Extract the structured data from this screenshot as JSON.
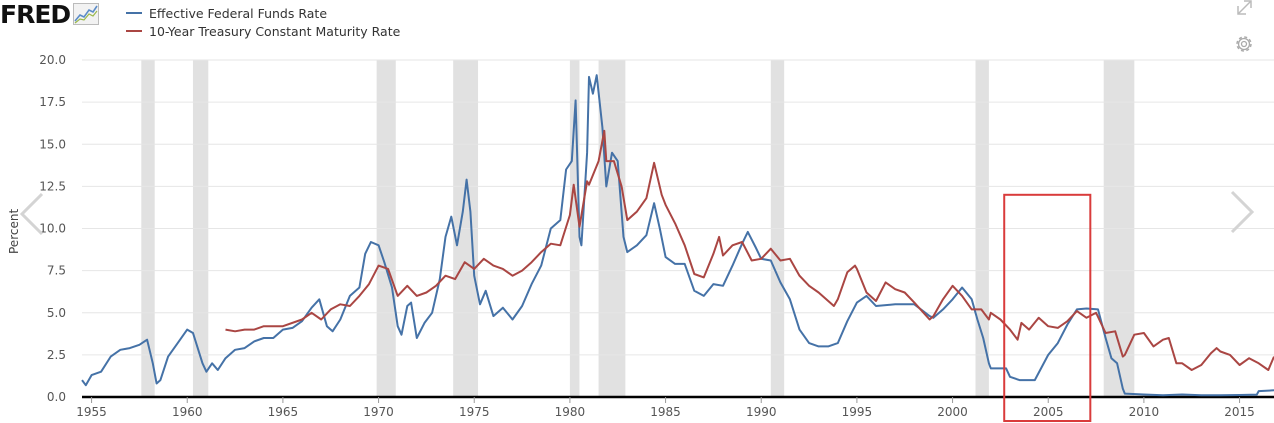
{
  "logo": {
    "text": "FRED",
    "icon": "line-chart-icon"
  },
  "tools": {
    "expand_icon": "expand-icon",
    "settings_icon": "gear-icon"
  },
  "navigation": {
    "prev_icon": "chevron-left-icon",
    "next_icon": "chevron-right-icon"
  },
  "colors": {
    "fedfunds": "#4572a7",
    "treasury": "#aa4643",
    "recession": "#e1e1e1",
    "highlight": "#d93b3b",
    "grid": "#e6e6e6"
  },
  "chart_data": {
    "type": "line",
    "title": "",
    "xlabel": "",
    "ylabel": "Percent",
    "xlim": [
      1954.5,
      2016.8
    ],
    "ylim": [
      0,
      20
    ],
    "y_ticks": [
      "0.0",
      "2.5",
      "5.0",
      "7.5",
      "10.0",
      "12.5",
      "15.0",
      "17.5",
      "20.0"
    ],
    "x_ticks": [
      "1955",
      "1960",
      "1965",
      "1970",
      "1975",
      "1980",
      "1985",
      "1990",
      "1995",
      "2000",
      "2005",
      "2010",
      "2015"
    ],
    "grid": true,
    "legend": "top-left",
    "recessions": [
      [
        1957.6,
        1958.3
      ],
      [
        1960.3,
        1961.1
      ],
      [
        1969.9,
        1970.9
      ],
      [
        1973.9,
        1975.2
      ],
      [
        1980.0,
        1980.5
      ],
      [
        1981.5,
        1982.9
      ],
      [
        1990.5,
        1991.2
      ],
      [
        2001.2,
        2001.9
      ],
      [
        2007.9,
        2009.5
      ]
    ],
    "highlight_box": {
      "x": [
        2002.7,
        2007.2
      ],
      "y": [
        -1.5,
        12
      ]
    },
    "series": [
      {
        "name": "Effective Federal Funds Rate",
        "color": "#4572a7",
        "points": [
          [
            1954.5,
            1.0
          ],
          [
            1954.7,
            0.7
          ],
          [
            1955.0,
            1.3
          ],
          [
            1955.5,
            1.5
          ],
          [
            1956.0,
            2.4
          ],
          [
            1956.5,
            2.8
          ],
          [
            1957.0,
            2.9
          ],
          [
            1957.5,
            3.1
          ],
          [
            1957.9,
            3.4
          ],
          [
            1958.2,
            2.0
          ],
          [
            1958.4,
            0.8
          ],
          [
            1958.6,
            1.0
          ],
          [
            1959.0,
            2.4
          ],
          [
            1959.5,
            3.2
          ],
          [
            1960.0,
            4.0
          ],
          [
            1960.3,
            3.8
          ],
          [
            1960.8,
            2.0
          ],
          [
            1961.0,
            1.5
          ],
          [
            1961.3,
            2.0
          ],
          [
            1961.6,
            1.6
          ],
          [
            1962.0,
            2.3
          ],
          [
            1962.5,
            2.8
          ],
          [
            1963.0,
            2.9
          ],
          [
            1963.5,
            3.3
          ],
          [
            1964.0,
            3.5
          ],
          [
            1964.5,
            3.5
          ],
          [
            1965.0,
            4.0
          ],
          [
            1965.5,
            4.1
          ],
          [
            1966.0,
            4.5
          ],
          [
            1966.5,
            5.3
          ],
          [
            1966.9,
            5.8
          ],
          [
            1967.3,
            4.2
          ],
          [
            1967.6,
            3.9
          ],
          [
            1968.0,
            4.6
          ],
          [
            1968.5,
            6.0
          ],
          [
            1969.0,
            6.5
          ],
          [
            1969.3,
            8.5
          ],
          [
            1969.6,
            9.2
          ],
          [
            1970.0,
            9.0
          ],
          [
            1970.3,
            8.0
          ],
          [
            1970.7,
            6.5
          ],
          [
            1971.0,
            4.2
          ],
          [
            1971.2,
            3.7
          ],
          [
            1971.5,
            5.4
          ],
          [
            1971.7,
            5.6
          ],
          [
            1972.0,
            3.5
          ],
          [
            1972.4,
            4.4
          ],
          [
            1972.8,
            5.0
          ],
          [
            1973.2,
            7.0
          ],
          [
            1973.5,
            9.5
          ],
          [
            1973.8,
            10.7
          ],
          [
            1974.1,
            9.0
          ],
          [
            1974.4,
            11.0
          ],
          [
            1974.6,
            12.9
          ],
          [
            1974.8,
            11.0
          ],
          [
            1975.0,
            7.2
          ],
          [
            1975.3,
            5.5
          ],
          [
            1975.6,
            6.3
          ],
          [
            1976.0,
            4.8
          ],
          [
            1976.5,
            5.3
          ],
          [
            1977.0,
            4.6
          ],
          [
            1977.5,
            5.4
          ],
          [
            1978.0,
            6.7
          ],
          [
            1978.5,
            7.8
          ],
          [
            1979.0,
            10.0
          ],
          [
            1979.5,
            10.5
          ],
          [
            1979.8,
            13.5
          ],
          [
            1980.1,
            14.0
          ],
          [
            1980.3,
            17.6
          ],
          [
            1980.5,
            9.5
          ],
          [
            1980.6,
            9.0
          ],
          [
            1980.9,
            14.5
          ],
          [
            1981.0,
            19.0
          ],
          [
            1981.2,
            18.0
          ],
          [
            1981.4,
            19.1
          ],
          [
            1981.7,
            16.0
          ],
          [
            1981.9,
            12.5
          ],
          [
            1982.2,
            14.5
          ],
          [
            1982.5,
            14.0
          ],
          [
            1982.8,
            9.5
          ],
          [
            1983.0,
            8.6
          ],
          [
            1983.5,
            9.0
          ],
          [
            1984.0,
            9.6
          ],
          [
            1984.4,
            11.5
          ],
          [
            1984.7,
            10.0
          ],
          [
            1985.0,
            8.3
          ],
          [
            1985.5,
            7.9
          ],
          [
            1986.0,
            7.9
          ],
          [
            1986.5,
            6.3
          ],
          [
            1987.0,
            6.0
          ],
          [
            1987.5,
            6.7
          ],
          [
            1988.0,
            6.6
          ],
          [
            1988.5,
            7.8
          ],
          [
            1989.0,
            9.1
          ],
          [
            1989.3,
            9.8
          ],
          [
            1989.7,
            8.9
          ],
          [
            1990.0,
            8.2
          ],
          [
            1990.5,
            8.1
          ],
          [
            1991.0,
            6.8
          ],
          [
            1991.5,
            5.8
          ],
          [
            1992.0,
            4.0
          ],
          [
            1992.5,
            3.2
          ],
          [
            1993.0,
            3.0
          ],
          [
            1993.5,
            3.0
          ],
          [
            1994.0,
            3.2
          ],
          [
            1994.5,
            4.5
          ],
          [
            1995.0,
            5.6
          ],
          [
            1995.5,
            6.0
          ],
          [
            1996.0,
            5.4
          ],
          [
            1997.0,
            5.5
          ],
          [
            1998.0,
            5.5
          ],
          [
            1998.8,
            4.8
          ],
          [
            1999.0,
            4.7
          ],
          [
            1999.5,
            5.2
          ],
          [
            2000.0,
            5.8
          ],
          [
            2000.5,
            6.5
          ],
          [
            2001.0,
            5.8
          ],
          [
            2001.3,
            4.6
          ],
          [
            2001.6,
            3.5
          ],
          [
            2001.9,
            2.0
          ],
          [
            2002.0,
            1.7
          ],
          [
            2002.8,
            1.7
          ],
          [
            2003.0,
            1.2
          ],
          [
            2003.5,
            1.0
          ],
          [
            2004.0,
            1.0
          ],
          [
            2004.3,
            1.0
          ],
          [
            2005.0,
            2.5
          ],
          [
            2005.5,
            3.2
          ],
          [
            2006.0,
            4.3
          ],
          [
            2006.5,
            5.2
          ],
          [
            2007.0,
            5.25
          ],
          [
            2007.6,
            5.2
          ],
          [
            2008.0,
            3.5
          ],
          [
            2008.3,
            2.3
          ],
          [
            2008.6,
            2.0
          ],
          [
            2008.9,
            0.5
          ],
          [
            2009.0,
            0.2
          ],
          [
            2010.0,
            0.15
          ],
          [
            2011.0,
            0.1
          ],
          [
            2012.0,
            0.15
          ],
          [
            2013.0,
            0.1
          ],
          [
            2014.0,
            0.1
          ],
          [
            2015.0,
            0.12
          ],
          [
            2015.9,
            0.14
          ],
          [
            2016.0,
            0.35
          ],
          [
            2016.8,
            0.4
          ]
        ]
      },
      {
        "name": "10-Year Treasury Constant Maturity Rate",
        "color": "#aa4643",
        "points": [
          [
            1962.0,
            4.0
          ],
          [
            1962.5,
            3.9
          ],
          [
            1963.0,
            4.0
          ],
          [
            1963.5,
            4.0
          ],
          [
            1964.0,
            4.2
          ],
          [
            1965.0,
            4.2
          ],
          [
            1966.0,
            4.6
          ],
          [
            1966.5,
            5.0
          ],
          [
            1967.0,
            4.6
          ],
          [
            1967.5,
            5.2
          ],
          [
            1968.0,
            5.5
          ],
          [
            1968.5,
            5.4
          ],
          [
            1969.0,
            6.0
          ],
          [
            1969.5,
            6.7
          ],
          [
            1970.0,
            7.8
          ],
          [
            1970.5,
            7.6
          ],
          [
            1971.0,
            6.0
          ],
          [
            1971.5,
            6.6
          ],
          [
            1972.0,
            6.0
          ],
          [
            1972.5,
            6.2
          ],
          [
            1973.0,
            6.6
          ],
          [
            1973.5,
            7.2
          ],
          [
            1974.0,
            7.0
          ],
          [
            1974.5,
            8.0
          ],
          [
            1975.0,
            7.6
          ],
          [
            1975.5,
            8.2
          ],
          [
            1976.0,
            7.8
          ],
          [
            1976.5,
            7.6
          ],
          [
            1977.0,
            7.2
          ],
          [
            1977.5,
            7.5
          ],
          [
            1978.0,
            8.0
          ],
          [
            1978.5,
            8.6
          ],
          [
            1979.0,
            9.1
          ],
          [
            1979.5,
            9.0
          ],
          [
            1980.0,
            10.8
          ],
          [
            1980.2,
            12.6
          ],
          [
            1980.5,
            10.1
          ],
          [
            1980.9,
            12.8
          ],
          [
            1981.0,
            12.6
          ],
          [
            1981.5,
            14.0
          ],
          [
            1981.8,
            15.8
          ],
          [
            1981.9,
            14.0
          ],
          [
            1982.3,
            14.0
          ],
          [
            1982.7,
            12.5
          ],
          [
            1983.0,
            10.5
          ],
          [
            1983.5,
            11.0
          ],
          [
            1984.0,
            11.8
          ],
          [
            1984.4,
            13.9
          ],
          [
            1984.8,
            12.0
          ],
          [
            1985.0,
            11.4
          ],
          [
            1985.5,
            10.3
          ],
          [
            1986.0,
            9.0
          ],
          [
            1986.5,
            7.3
          ],
          [
            1987.0,
            7.1
          ],
          [
            1987.5,
            8.5
          ],
          [
            1987.8,
            9.5
          ],
          [
            1988.0,
            8.4
          ],
          [
            1988.5,
            9.0
          ],
          [
            1989.0,
            9.2
          ],
          [
            1989.5,
            8.1
          ],
          [
            1990.0,
            8.2
          ],
          [
            1990.5,
            8.8
          ],
          [
            1991.0,
            8.1
          ],
          [
            1991.5,
            8.2
          ],
          [
            1992.0,
            7.2
          ],
          [
            1992.5,
            6.6
          ],
          [
            1993.0,
            6.2
          ],
          [
            1993.8,
            5.4
          ],
          [
            1994.0,
            5.8
          ],
          [
            1994.5,
            7.4
          ],
          [
            1994.9,
            7.8
          ],
          [
            1995.0,
            7.6
          ],
          [
            1995.5,
            6.2
          ],
          [
            1996.0,
            5.7
          ],
          [
            1996.5,
            6.8
          ],
          [
            1997.0,
            6.4
          ],
          [
            1997.5,
            6.2
          ],
          [
            1998.0,
            5.6
          ],
          [
            1998.8,
            4.6
          ],
          [
            1999.0,
            4.8
          ],
          [
            1999.5,
            5.8
          ],
          [
            2000.0,
            6.6
          ],
          [
            2000.5,
            6.0
          ],
          [
            2001.0,
            5.2
          ],
          [
            2001.5,
            5.2
          ],
          [
            2001.9,
            4.6
          ],
          [
            2002.0,
            5.0
          ],
          [
            2002.5,
            4.6
          ],
          [
            2003.0,
            4.0
          ],
          [
            2003.4,
            3.4
          ],
          [
            2003.6,
            4.4
          ],
          [
            2004.0,
            4.0
          ],
          [
            2004.5,
            4.7
          ],
          [
            2005.0,
            4.2
          ],
          [
            2005.5,
            4.1
          ],
          [
            2006.0,
            4.5
          ],
          [
            2006.5,
            5.1
          ],
          [
            2007.0,
            4.7
          ],
          [
            2007.5,
            5.0
          ],
          [
            2008.0,
            3.8
          ],
          [
            2008.5,
            3.9
          ],
          [
            2008.9,
            2.4
          ],
          [
            2009.0,
            2.5
          ],
          [
            2009.5,
            3.7
          ],
          [
            2010.0,
            3.8
          ],
          [
            2010.5,
            3.0
          ],
          [
            2011.0,
            3.4
          ],
          [
            2011.3,
            3.5
          ],
          [
            2011.7,
            2.0
          ],
          [
            2012.0,
            2.0
          ],
          [
            2012.5,
            1.6
          ],
          [
            2013.0,
            1.9
          ],
          [
            2013.5,
            2.6
          ],
          [
            2013.8,
            2.9
          ],
          [
            2014.0,
            2.7
          ],
          [
            2014.5,
            2.5
          ],
          [
            2015.0,
            1.9
          ],
          [
            2015.5,
            2.3
          ],
          [
            2016.0,
            2.0
          ],
          [
            2016.5,
            1.6
          ],
          [
            2016.8,
            2.4
          ]
        ]
      }
    ]
  }
}
